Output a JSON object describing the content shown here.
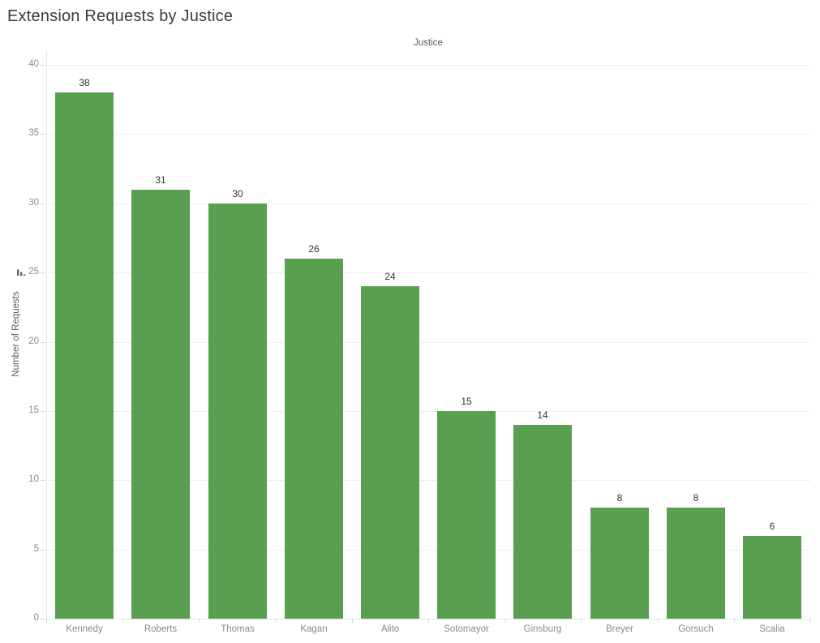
{
  "title": "Extension Requests by Justice",
  "column_header": "Justice",
  "y_axis": {
    "title": "Number of Requests",
    "sort_icon": "sort-descending-bars-icon"
  },
  "colors": {
    "bar": "#58A050",
    "gridline": "#f0f0f0",
    "baseline": "#e3e3e3",
    "axis_line": "#e6e6e6",
    "tick_mark": "#d9d9d9",
    "axis_text": "#8a8a8a",
    "header_text": "#5a5a5a",
    "data_label_text": "#333333",
    "title_text": "#3c3c3c"
  },
  "chart_data": {
    "type": "bar",
    "title": "Extension Requests by Justice",
    "xlabel": "Justice",
    "ylabel": "Number of Requests",
    "categories": [
      "Kennedy",
      "Roberts",
      "Thomas",
      "Kagan",
      "Alito",
      "Sotomayor",
      "Ginsburg",
      "Breyer",
      "Gorsuch",
      "Scalia"
    ],
    "values": [
      38,
      31,
      30,
      26,
      24,
      15,
      14,
      8,
      8,
      6
    ],
    "data_labels": [
      "38",
      "31",
      "30",
      "26",
      "24",
      "15",
      "14",
      "8",
      "8",
      "6"
    ],
    "ylim": [
      0,
      40
    ],
    "yticks": [
      0,
      5,
      10,
      15,
      20,
      25,
      30,
      35,
      40
    ],
    "grid": true,
    "legend": "none",
    "sort_order": "descending",
    "bar_color": "#58A050"
  }
}
